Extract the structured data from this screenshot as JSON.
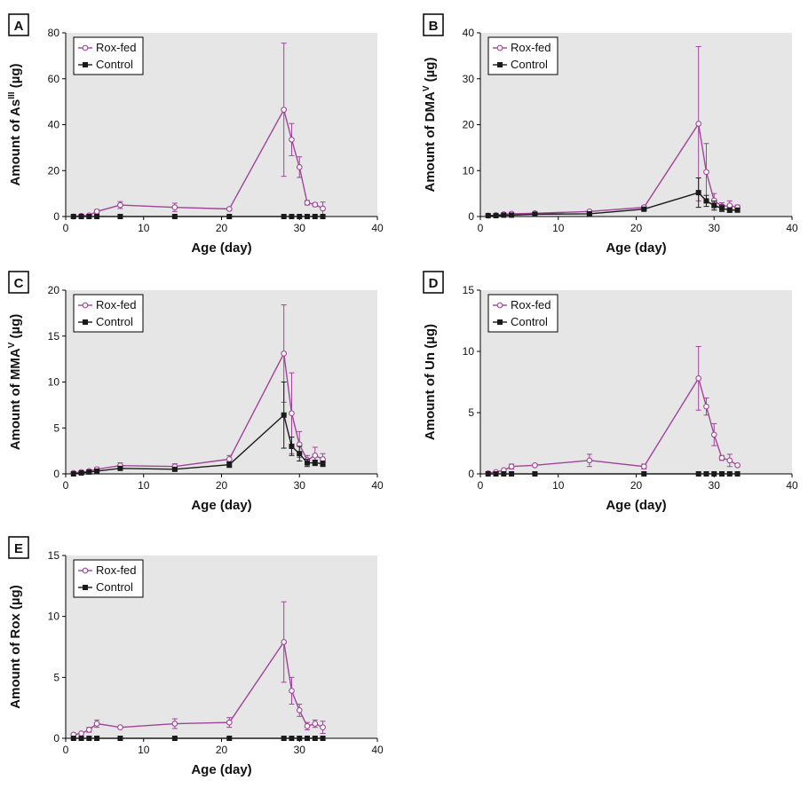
{
  "figure": {
    "x_axis_label": "Age (day)"
  },
  "colors": {
    "rox": "#a0449a",
    "control": "#1a1a1a",
    "plot_background": "#e6e6e6"
  },
  "chart_data": [
    {
      "panel": "A",
      "type": "line",
      "xlabel": "Age (day)",
      "ylabel_main": "Amount of As",
      "ylabel_sup": "III",
      "ylabel_unit": " (µg)",
      "xlim": [
        0,
        40
      ],
      "ylim": [
        0,
        80
      ],
      "xticks": [
        0,
        10,
        20,
        30,
        40
      ],
      "yticks": [
        0,
        20,
        40,
        60,
        80
      ],
      "legend_position": "top-left",
      "series": [
        {
          "name": "Rox-fed",
          "marker": "open-circle",
          "color": "#a0449a",
          "x": [
            1,
            2,
            3,
            4,
            7,
            14,
            21,
            28,
            29,
            30,
            31,
            32,
            33
          ],
          "y": [
            0,
            0.3,
            0.5,
            2.2,
            5,
            4,
            3.3,
            46.5,
            33.5,
            21.5,
            6,
            5.2,
            3.5
          ],
          "err": [
            0,
            0,
            0,
            0.8,
            1.5,
            1.8,
            0.5,
            29,
            7,
            4.5,
            1,
            0.8,
            2.8
          ]
        },
        {
          "name": "Control",
          "marker": "filled-square",
          "color": "#1a1a1a",
          "x": [
            1,
            2,
            3,
            4,
            7,
            14,
            21,
            28,
            29,
            30,
            31,
            32,
            33
          ],
          "y": [
            0,
            0,
            0,
            0,
            0,
            0,
            0,
            0,
            0,
            0,
            0,
            0,
            0
          ],
          "err": [
            0,
            0,
            0,
            0,
            0,
            0,
            0,
            0,
            0,
            0,
            0,
            0,
            0
          ]
        }
      ]
    },
    {
      "panel": "B",
      "type": "line",
      "xlabel": "Age (day)",
      "ylabel_main": "Amount of DMA",
      "ylabel_sup": "V",
      "ylabel_unit": " (µg)",
      "xlim": [
        0,
        40
      ],
      "ylim": [
        0,
        40
      ],
      "xticks": [
        0,
        10,
        20,
        30,
        40
      ],
      "yticks": [
        0,
        10,
        20,
        30,
        40
      ],
      "legend_position": "top-left",
      "series": [
        {
          "name": "Rox-fed",
          "marker": "open-circle",
          "color": "#a0449a",
          "x": [
            1,
            2,
            3,
            4,
            7,
            14,
            21,
            28,
            29,
            30,
            31,
            32,
            33
          ],
          "y": [
            0.2,
            0.3,
            0.5,
            0.6,
            0.7,
            1.1,
            2.0,
            20.2,
            9.7,
            3.5,
            2.2,
            2.4,
            2.0
          ],
          "err": [
            0,
            0,
            0.2,
            0.3,
            0.2,
            0.3,
            0.3,
            16.8,
            6.2,
            1.5,
            0.8,
            1.0,
            0.5
          ]
        },
        {
          "name": "Control",
          "marker": "filled-square",
          "color": "#1a1a1a",
          "x": [
            1,
            2,
            3,
            4,
            7,
            14,
            21,
            28,
            29,
            30,
            31,
            32,
            33
          ],
          "y": [
            0.2,
            0.2,
            0.3,
            0.3,
            0.5,
            0.6,
            1.6,
            5.2,
            3.4,
            2.4,
            1.8,
            1.4,
            1.4
          ],
          "err": [
            0,
            0,
            0,
            0,
            0,
            0.2,
            0.3,
            3.2,
            1.2,
            1.0,
            0.7,
            0.5,
            0.4
          ]
        }
      ]
    },
    {
      "panel": "C",
      "type": "line",
      "xlabel": "Age (day)",
      "ylabel_main": "Amount of MMA",
      "ylabel_sup": "V",
      "ylabel_unit": " (µg)",
      "xlim": [
        0,
        40
      ],
      "ylim": [
        0,
        20
      ],
      "xticks": [
        0,
        10,
        20,
        30,
        40
      ],
      "yticks": [
        0,
        5,
        10,
        15,
        20
      ],
      "legend_position": "top-left",
      "series": [
        {
          "name": "Rox-fed",
          "marker": "open-circle",
          "color": "#a0449a",
          "x": [
            1,
            2,
            3,
            4,
            7,
            14,
            21,
            28,
            29,
            30,
            31,
            32,
            33
          ],
          "y": [
            0.1,
            0.2,
            0.3,
            0.5,
            0.9,
            0.8,
            1.6,
            13.1,
            6.6,
            3.2,
            1.5,
            2.0,
            1.6
          ],
          "err": [
            0,
            0,
            0.1,
            0.2,
            0.3,
            0.3,
            0.4,
            5.3,
            4.4,
            1.4,
            0.5,
            0.9,
            0.6
          ]
        },
        {
          "name": "Control",
          "marker": "filled-square",
          "color": "#1a1a1a",
          "x": [
            1,
            2,
            3,
            4,
            7,
            14,
            21,
            28,
            29,
            30,
            31,
            32,
            33
          ],
          "y": [
            0,
            0.1,
            0.2,
            0.3,
            0.6,
            0.5,
            1.0,
            6.4,
            3.0,
            2.2,
            1.2,
            1.2,
            1.1
          ],
          "err": [
            0,
            0,
            0,
            0,
            0.2,
            0.2,
            0.3,
            3.6,
            1.0,
            0.8,
            0.4,
            0.3,
            0.3
          ]
        }
      ]
    },
    {
      "panel": "D",
      "type": "line",
      "xlabel": "Age (day)",
      "ylabel_main": "Amount of Un",
      "ylabel_sup": "",
      "ylabel_unit": " (µg)",
      "xlim": [
        0,
        40
      ],
      "ylim": [
        0,
        15
      ],
      "xticks": [
        0,
        10,
        20,
        30,
        40
      ],
      "yticks": [
        0,
        5,
        10,
        15
      ],
      "legend_position": "top-left",
      "series": [
        {
          "name": "Rox-fed",
          "marker": "open-circle",
          "color": "#a0449a",
          "x": [
            1,
            2,
            3,
            4,
            7,
            14,
            21,
            28,
            29,
            30,
            31,
            32,
            33
          ],
          "y": [
            0.05,
            0.15,
            0.3,
            0.6,
            0.7,
            1.1,
            0.6,
            7.8,
            5.5,
            3.2,
            1.3,
            1.1,
            0.7
          ],
          "err": [
            0,
            0,
            0,
            0.2,
            0.1,
            0.5,
            0.2,
            2.6,
            0.7,
            0.9,
            0.2,
            0.5,
            0.1
          ]
        },
        {
          "name": "Control",
          "marker": "filled-square",
          "color": "#1a1a1a",
          "x": [
            1,
            2,
            3,
            4,
            7,
            21,
            28,
            29,
            30,
            31,
            32,
            33
          ],
          "y": [
            0,
            0,
            0,
            0,
            0,
            0,
            0,
            0,
            0,
            0,
            0,
            0
          ],
          "err": [
            0,
            0,
            0,
            0,
            0,
            0,
            0,
            0,
            0,
            0,
            0,
            0
          ]
        }
      ]
    },
    {
      "panel": "E",
      "type": "line",
      "xlabel": "Age (day)",
      "ylabel_main": "Amount of Rox",
      "ylabel_sup": "",
      "ylabel_unit": " (µg)",
      "xlim": [
        0,
        40
      ],
      "ylim": [
        0,
        15
      ],
      "xticks": [
        0,
        10,
        20,
        30,
        40
      ],
      "yticks": [
        0,
        5,
        10,
        15
      ],
      "legend_position": "top-left",
      "series": [
        {
          "name": "Rox-fed",
          "marker": "open-circle",
          "color": "#a0449a",
          "x": [
            1,
            2,
            3,
            4,
            7,
            14,
            21,
            28,
            29,
            30,
            31,
            32,
            33
          ],
          "y": [
            0.3,
            0.4,
            0.7,
            1.2,
            0.9,
            1.2,
            1.3,
            7.9,
            3.9,
            2.3,
            1.0,
            1.2,
            0.9
          ],
          "err": [
            0,
            0,
            0.2,
            0.3,
            0,
            0.4,
            0.4,
            3.3,
            1.1,
            0.5,
            0.3,
            0.3,
            0.5
          ]
        },
        {
          "name": "Control",
          "marker": "filled-square",
          "color": "#1a1a1a",
          "x": [
            1,
            2,
            3,
            4,
            7,
            14,
            21,
            28,
            29,
            30,
            31,
            32,
            33
          ],
          "y": [
            0,
            0,
            0,
            0,
            0,
            0,
            0,
            0,
            0,
            0,
            0,
            0,
            0
          ],
          "err": [
            0,
            0,
            0,
            0,
            0,
            0,
            0,
            0,
            0,
            0,
            0,
            0,
            0
          ]
        }
      ]
    }
  ]
}
